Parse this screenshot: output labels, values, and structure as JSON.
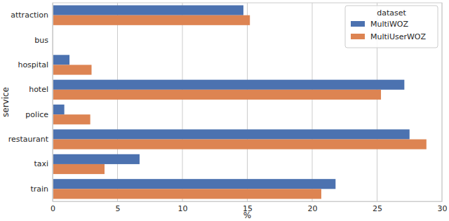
{
  "chart_data": {
    "type": "bar",
    "orientation": "horizontal",
    "x_label": "%",
    "y_label": "service",
    "categories": [
      "attraction",
      "bus",
      "hospital",
      "hotel",
      "police",
      "restaurant",
      "taxi",
      "train"
    ],
    "series": [
      {
        "name": "MultiWOZ",
        "color": "#4c72b0",
        "values": [
          14.7,
          0,
          1.3,
          27.1,
          0.9,
          27.5,
          6.7,
          21.8
        ]
      },
      {
        "name": "MultiUserWOZ",
        "color": "#dd8452",
        "values": [
          15.2,
          0,
          3.0,
          25.3,
          2.9,
          28.8,
          4.0,
          20.7
        ]
      }
    ],
    "xlim": [
      0,
      30
    ],
    "xticks": [
      0,
      5,
      10,
      15,
      20,
      25,
      30
    ],
    "grid": true,
    "legend": "upper right",
    "legend_title": "dataset"
  }
}
